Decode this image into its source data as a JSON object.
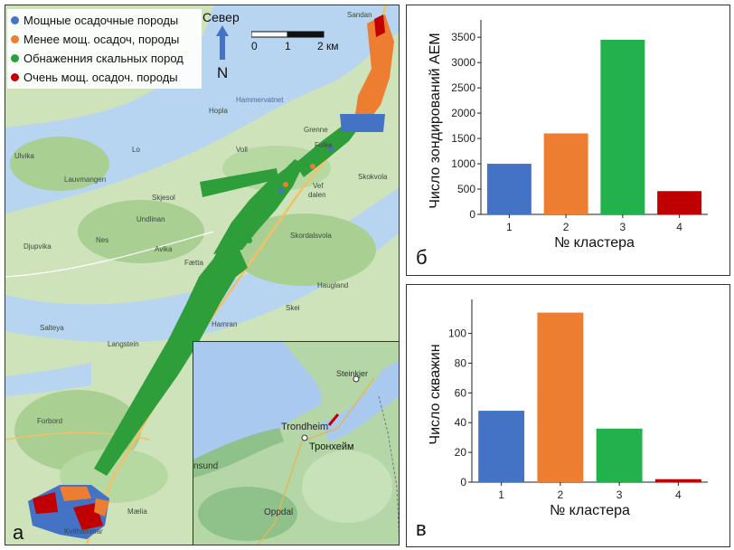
{
  "map": {
    "panel_label": "а",
    "legend": [
      {
        "label": "Мощные осадочные породы",
        "color": "#4472c4"
      },
      {
        "label": "Менее мощ. осадоч, породы",
        "color": "#ed7d31"
      },
      {
        "label": "Обнаженния скальных пород",
        "color": "#2e9e3a"
      },
      {
        "label": "Очень мощ. осадоч. породы",
        "color": "#c00000"
      }
    ],
    "compass": {
      "label": "Север",
      "letter": "N"
    },
    "scale": {
      "ticks": [
        "0",
        "1",
        "2 км"
      ]
    },
    "place_labels": [
      "Sandan",
      "Hammervatnet",
      "Hopla",
      "Grenne",
      "Ulvika",
      "Lo",
      "Lauvmangen",
      "Voll",
      "Folke",
      "Skokvola",
      "Vef",
      "dalen",
      "Undlinan",
      "Skjesol",
      "Djupvika",
      "Nes",
      "Avika",
      "Skordalsvola",
      "Fætta",
      "Haugland",
      "Salteya",
      "Hamran",
      "Skei",
      "Langstein",
      "Forbord",
      "Kvithammar",
      "Mælia"
    ],
    "inset": {
      "labels": {
        "steinkjer": "Steinkjer",
        "trondheim": "Trondheim",
        "trondheim_ru": "Тронхейм",
        "sund": "nsund",
        "oppdal": "Oppdal"
      }
    }
  },
  "chart_data": [
    {
      "type": "bar",
      "panel_label": "б",
      "categories": [
        "1",
        "2",
        "3",
        "4"
      ],
      "values": [
        1000,
        1600,
        3450,
        460
      ],
      "colors": [
        "#4472c4",
        "#ed7d31",
        "#22b14c",
        "#c00000"
      ],
      "xlabel": "№ кластера",
      "ylabel": "Число зондирований АЕМ",
      "yticks": [
        0,
        500,
        1000,
        1500,
        2000,
        2500,
        3000,
        3500
      ],
      "ylim": [
        0,
        3700
      ]
    },
    {
      "type": "bar",
      "panel_label": "в",
      "categories": [
        "1",
        "2",
        "3",
        "4"
      ],
      "values": [
        48,
        114,
        36,
        2
      ],
      "colors": [
        "#4472c4",
        "#ed7d31",
        "#22b14c",
        "#c00000"
      ],
      "xlabel": "№ кластера",
      "ylabel": "Число скважин",
      "yticks": [
        0,
        20,
        40,
        60,
        80,
        100
      ],
      "ylim": [
        0,
        118
      ]
    }
  ]
}
